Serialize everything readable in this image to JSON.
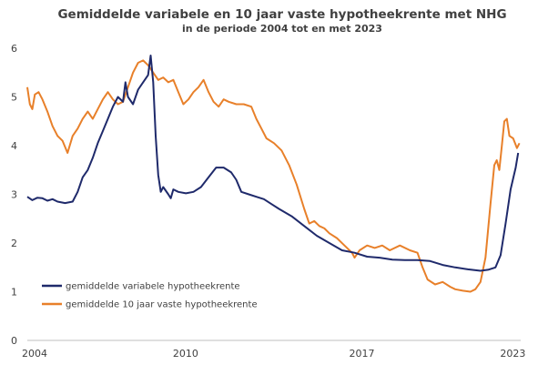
{
  "chart_data": {
    "type": "line",
    "title": "Gemiddelde variabele en 10 jaar vaste hypotheekrente met NHG",
    "subtitle": "in de periode 2004 tot en met 2023",
    "xlabel": "",
    "ylabel": "",
    "xlim": [
      2004.0,
      2023.6
    ],
    "ylim": [
      0,
      6
    ],
    "x_ticks": [
      "2004",
      "2010",
      "2017",
      "2023"
    ],
    "y_ticks": [
      "0",
      "1",
      "2",
      "3",
      "4",
      "5",
      "6"
    ],
    "grid": false,
    "legend_position": "bottom-left",
    "series": [
      {
        "name": "gemiddelde variabele hypotheekrente",
        "color": "#1f2a6b",
        "points": [
          [
            2004.0,
            2.95
          ],
          [
            2004.2,
            2.88
          ],
          [
            2004.4,
            2.93
          ],
          [
            2004.6,
            2.92
          ],
          [
            2004.8,
            2.87
          ],
          [
            2005.0,
            2.9
          ],
          [
            2005.2,
            2.85
          ],
          [
            2005.5,
            2.82
          ],
          [
            2005.8,
            2.85
          ],
          [
            2006.0,
            3.05
          ],
          [
            2006.2,
            3.35
          ],
          [
            2006.4,
            3.5
          ],
          [
            2006.6,
            3.75
          ],
          [
            2006.8,
            4.05
          ],
          [
            2007.0,
            4.3
          ],
          [
            2007.2,
            4.55
          ],
          [
            2007.4,
            4.8
          ],
          [
            2007.6,
            5.0
          ],
          [
            2007.8,
            4.9
          ],
          [
            2007.9,
            5.3
          ],
          [
            2008.0,
            5.0
          ],
          [
            2008.2,
            4.85
          ],
          [
            2008.4,
            5.15
          ],
          [
            2008.6,
            5.3
          ],
          [
            2008.8,
            5.45
          ],
          [
            2008.9,
            5.85
          ],
          [
            2009.0,
            5.3
          ],
          [
            2009.1,
            4.2
          ],
          [
            2009.2,
            3.4
          ],
          [
            2009.3,
            3.05
          ],
          [
            2009.4,
            3.15
          ],
          [
            2009.6,
            3.0
          ],
          [
            2009.7,
            2.92
          ],
          [
            2009.8,
            3.1
          ],
          [
            2010.0,
            3.05
          ],
          [
            2010.3,
            3.02
          ],
          [
            2010.6,
            3.05
          ],
          [
            2010.9,
            3.15
          ],
          [
            2011.2,
            3.35
          ],
          [
            2011.5,
            3.55
          ],
          [
            2011.8,
            3.55
          ],
          [
            2012.1,
            3.45
          ],
          [
            2012.3,
            3.3
          ],
          [
            2012.5,
            3.05
          ],
          [
            2012.8,
            3.0
          ],
          [
            2013.1,
            2.95
          ],
          [
            2013.4,
            2.9
          ],
          [
            2013.7,
            2.8
          ],
          [
            2014.0,
            2.7
          ],
          [
            2014.5,
            2.55
          ],
          [
            2015.0,
            2.35
          ],
          [
            2015.5,
            2.15
          ],
          [
            2016.0,
            2.0
          ],
          [
            2016.5,
            1.85
          ],
          [
            2017.0,
            1.8
          ],
          [
            2017.5,
            1.72
          ],
          [
            2018.0,
            1.7
          ],
          [
            2018.5,
            1.66
          ],
          [
            2019.0,
            1.65
          ],
          [
            2019.5,
            1.65
          ],
          [
            2020.0,
            1.63
          ],
          [
            2020.5,
            1.55
          ],
          [
            2021.0,
            1.5
          ],
          [
            2021.5,
            1.46
          ],
          [
            2022.0,
            1.43
          ],
          [
            2022.3,
            1.45
          ],
          [
            2022.6,
            1.5
          ],
          [
            2022.8,
            1.75
          ],
          [
            2023.0,
            2.4
          ],
          [
            2023.2,
            3.1
          ],
          [
            2023.4,
            3.55
          ],
          [
            2023.5,
            3.85
          ]
        ]
      },
      {
        "name": "gemiddelde 10 jaar vaste hypotheekrente",
        "color": "#e8802a",
        "points": [
          [
            2004.0,
            5.2
          ],
          [
            2004.1,
            4.85
          ],
          [
            2004.2,
            4.75
          ],
          [
            2004.3,
            5.05
          ],
          [
            2004.45,
            5.1
          ],
          [
            2004.6,
            4.95
          ],
          [
            2004.8,
            4.7
          ],
          [
            2005.0,
            4.4
          ],
          [
            2005.2,
            4.2
          ],
          [
            2005.4,
            4.1
          ],
          [
            2005.6,
            3.85
          ],
          [
            2005.8,
            4.2
          ],
          [
            2006.0,
            4.35
          ],
          [
            2006.2,
            4.55
          ],
          [
            2006.4,
            4.7
          ],
          [
            2006.6,
            4.55
          ],
          [
            2006.8,
            4.75
          ],
          [
            2007.0,
            4.95
          ],
          [
            2007.2,
            5.1
          ],
          [
            2007.4,
            4.95
          ],
          [
            2007.6,
            4.85
          ],
          [
            2007.8,
            4.9
          ],
          [
            2008.0,
            5.2
          ],
          [
            2008.2,
            5.5
          ],
          [
            2008.4,
            5.7
          ],
          [
            2008.6,
            5.75
          ],
          [
            2008.8,
            5.65
          ],
          [
            2009.0,
            5.5
          ],
          [
            2009.2,
            5.35
          ],
          [
            2009.4,
            5.4
          ],
          [
            2009.6,
            5.3
          ],
          [
            2009.8,
            5.35
          ],
          [
            2010.0,
            5.1
          ],
          [
            2010.2,
            4.85
          ],
          [
            2010.4,
            4.95
          ],
          [
            2010.6,
            5.1
          ],
          [
            2010.8,
            5.2
          ],
          [
            2011.0,
            5.35
          ],
          [
            2011.2,
            5.1
          ],
          [
            2011.4,
            4.9
          ],
          [
            2011.6,
            4.8
          ],
          [
            2011.8,
            4.95
          ],
          [
            2012.0,
            4.9
          ],
          [
            2012.3,
            4.85
          ],
          [
            2012.6,
            4.85
          ],
          [
            2012.9,
            4.8
          ],
          [
            2013.1,
            4.55
          ],
          [
            2013.3,
            4.35
          ],
          [
            2013.5,
            4.15
          ],
          [
            2013.8,
            4.05
          ],
          [
            2014.1,
            3.9
          ],
          [
            2014.4,
            3.6
          ],
          [
            2014.7,
            3.2
          ],
          [
            2015.0,
            2.7
          ],
          [
            2015.2,
            2.4
          ],
          [
            2015.4,
            2.45
          ],
          [
            2015.6,
            2.35
          ],
          [
            2015.8,
            2.3
          ],
          [
            2016.0,
            2.2
          ],
          [
            2016.3,
            2.1
          ],
          [
            2016.6,
            1.95
          ],
          [
            2016.9,
            1.8
          ],
          [
            2017.0,
            1.7
          ],
          [
            2017.2,
            1.85
          ],
          [
            2017.5,
            1.95
          ],
          [
            2017.8,
            1.9
          ],
          [
            2018.1,
            1.95
          ],
          [
            2018.4,
            1.85
          ],
          [
            2018.8,
            1.95
          ],
          [
            2019.2,
            1.85
          ],
          [
            2019.5,
            1.8
          ],
          [
            2019.7,
            1.5
          ],
          [
            2019.9,
            1.25
          ],
          [
            2020.2,
            1.15
          ],
          [
            2020.5,
            1.2
          ],
          [
            2020.8,
            1.1
          ],
          [
            2021.0,
            1.05
          ],
          [
            2021.3,
            1.02
          ],
          [
            2021.6,
            1.0
          ],
          [
            2021.8,
            1.05
          ],
          [
            2022.0,
            1.2
          ],
          [
            2022.2,
            1.7
          ],
          [
            2022.4,
            2.8
          ],
          [
            2022.55,
            3.6
          ],
          [
            2022.65,
            3.7
          ],
          [
            2022.75,
            3.5
          ],
          [
            2022.85,
            4.0
          ],
          [
            2022.95,
            4.5
          ],
          [
            2023.05,
            4.55
          ],
          [
            2023.15,
            4.2
          ],
          [
            2023.3,
            4.15
          ],
          [
            2023.45,
            3.95
          ],
          [
            2023.55,
            4.05
          ]
        ]
      }
    ]
  }
}
